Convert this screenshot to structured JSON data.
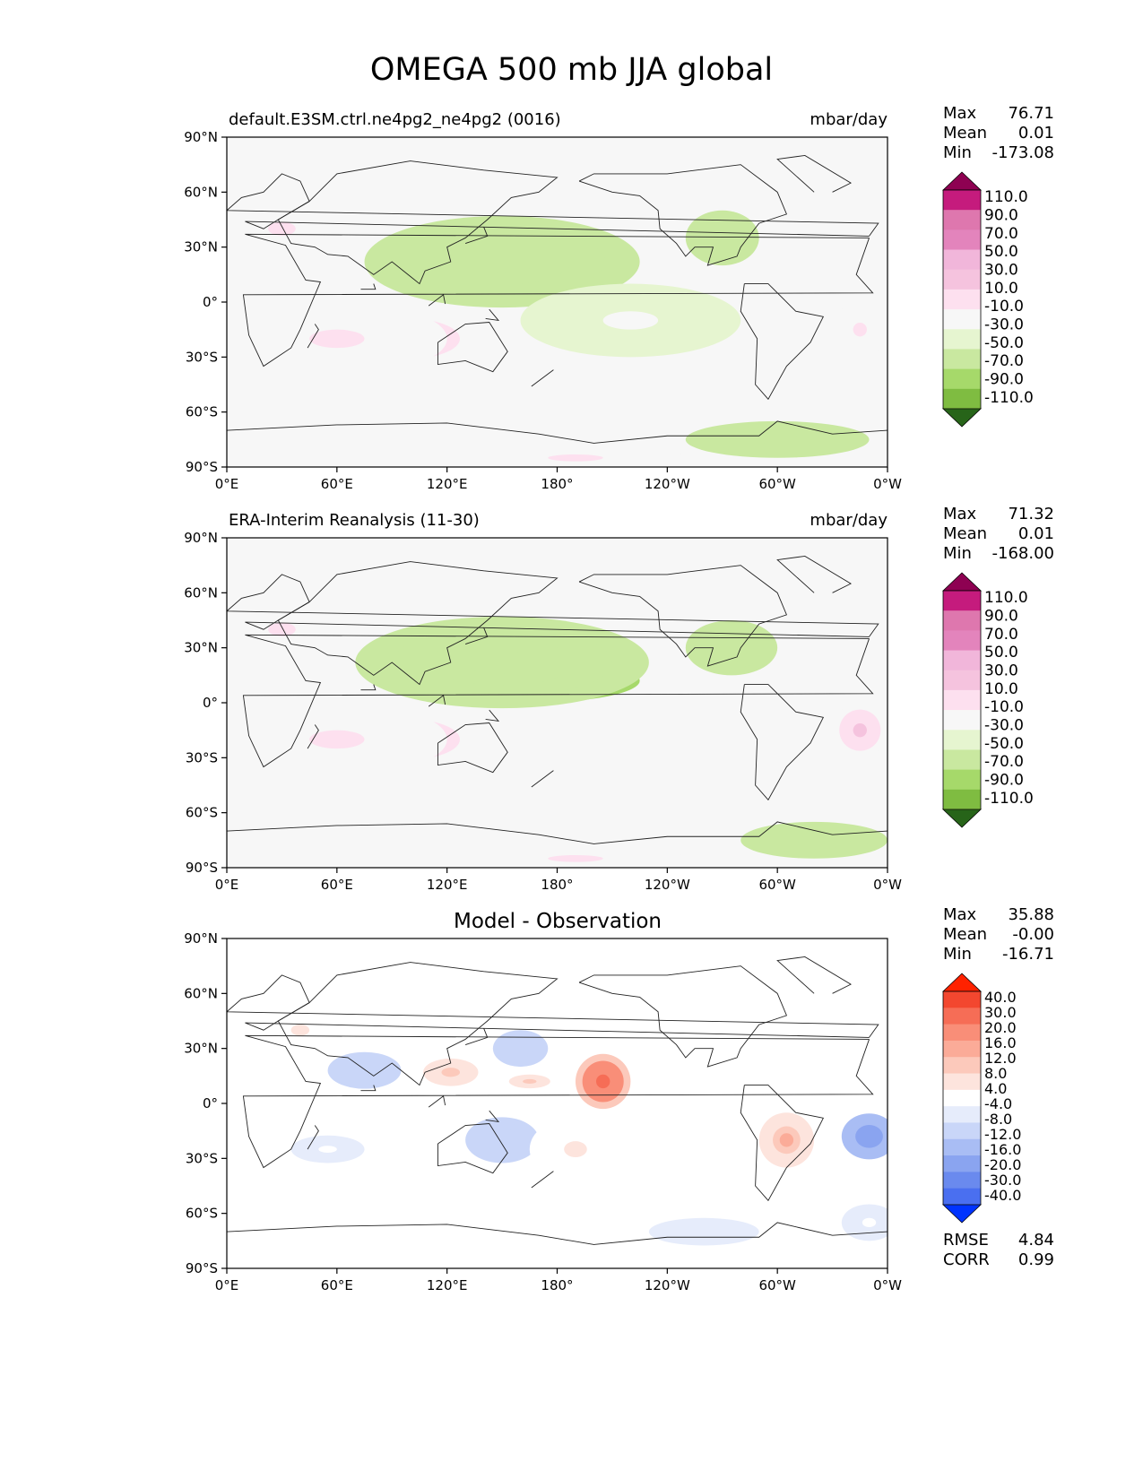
{
  "title": "OMEGA 500 mb JJA global",
  "axes": {
    "lat_ticks": [
      "90°N",
      "60°N",
      "30°N",
      "0°",
      "30°S",
      "60°S",
      "90°S"
    ],
    "lon_ticks": [
      "0°E",
      "60°E",
      "120°E",
      "180°",
      "120°W",
      "60°W",
      "0°W"
    ]
  },
  "colors": {
    "omega_levels_colors": [
      "#276419",
      "#3a7d1e",
      "#4d9221",
      "#7fbc41",
      "#a6d96a",
      "#c9e8a0",
      "#e6f5d0",
      "#f7f7f7",
      "#fde0ef",
      "#f5c3de",
      "#f1b6da",
      "#e384bc",
      "#de77ae",
      "#c51b7d",
      "#8e0152"
    ],
    "diff_levels_colors": [
      "#0033ff",
      "#2a55f5",
      "#4a6ff0",
      "#6a8aee",
      "#8aa4f0",
      "#a9bdf4",
      "#c9d6f8",
      "#e6ecfb",
      "#ffffff",
      "#fde4dd",
      "#fcc9bb",
      "#fbab98",
      "#f98e78",
      "#f66d56",
      "#f3472f",
      "#ff2200"
    ]
  },
  "chart_data": [
    {
      "type": "heatmap",
      "title": "default.E3SM.ctrl.ne4pg2_ne4pg2 (0016)",
      "units": "mbar/day",
      "xlim": [
        0,
        360
      ],
      "ylim": [
        -90,
        90
      ],
      "stats": {
        "labels": [
          "Max",
          "Mean",
          "Min"
        ],
        "values": [
          "76.71",
          "0.01",
          "-173.08"
        ]
      },
      "colorbar_ticks": [
        "110.0",
        "90.0",
        "70.0",
        "50.0",
        "30.0",
        "10.0",
        "-10.0",
        "-30.0",
        "-50.0",
        "-70.0",
        "-90.0",
        "-110.0"
      ],
      "features": [
        {
          "lon": 140,
          "lat": 14,
          "level": -110,
          "w": 90,
          "h": 16
        },
        {
          "lon": 160,
          "lat": 12,
          "level": -70,
          "w": 110,
          "h": 24
        },
        {
          "lon": 150,
          "lat": 22,
          "level": -30,
          "w": 150,
          "h": 50
        },
        {
          "lon": 97,
          "lat": -20,
          "level": 50,
          "w": 80,
          "h": 30
        },
        {
          "lon": 60,
          "lat": -20,
          "level": 30,
          "w": 120,
          "h": 40
        },
        {
          "lon": 220,
          "lat": -10,
          "level": 10,
          "w": 120,
          "h": 40
        },
        {
          "lon": 345,
          "lat": -15,
          "level": 30,
          "w": 30,
          "h": 30
        },
        {
          "lon": 30,
          "lat": 40,
          "level": 30,
          "w": 60,
          "h": 30
        },
        {
          "lon": 270,
          "lat": 35,
          "level": -30,
          "w": 40,
          "h": 30
        },
        {
          "lon": 300,
          "lat": -75,
          "level": -30,
          "w": 100,
          "h": 20
        },
        {
          "lon": 190,
          "lat": -85,
          "level": 30,
          "w": 120,
          "h": 15
        }
      ]
    },
    {
      "type": "heatmap",
      "title": "ERA-Interim Reanalysis (11-30)",
      "units": "mbar/day",
      "xlim": [
        0,
        360
      ],
      "ylim": [
        -90,
        90
      ],
      "stats": {
        "labels": [
          "Max",
          "Mean",
          "Min"
        ],
        "values": [
          "71.32",
          "0.01",
          "-168.00"
        ]
      },
      "colorbar_ticks": [
        "110.0",
        "90.0",
        "70.0",
        "50.0",
        "30.0",
        "10.0",
        "-10.0",
        "-30.0",
        "-50.0",
        "-70.0",
        "-90.0",
        "-110.0"
      ],
      "features": [
        {
          "lon": 140,
          "lat": 14,
          "level": -110,
          "w": 90,
          "h": 16
        },
        {
          "lon": 165,
          "lat": 12,
          "level": -70,
          "w": 120,
          "h": 24
        },
        {
          "lon": 150,
          "lat": 22,
          "level": -30,
          "w": 160,
          "h": 50
        },
        {
          "lon": 97,
          "lat": -20,
          "level": 50,
          "w": 80,
          "h": 30
        },
        {
          "lon": 60,
          "lat": -20,
          "level": 30,
          "w": 120,
          "h": 40
        },
        {
          "lon": 345,
          "lat": -15,
          "level": 50,
          "w": 30,
          "h": 30
        },
        {
          "lon": 30,
          "lat": 40,
          "level": 30,
          "w": 60,
          "h": 30
        },
        {
          "lon": 275,
          "lat": 30,
          "level": -30,
          "w": 50,
          "h": 30
        },
        {
          "lon": 320,
          "lat": -75,
          "level": -30,
          "w": 80,
          "h": 20
        },
        {
          "lon": 190,
          "lat": -85,
          "level": 30,
          "w": 120,
          "h": 15
        }
      ]
    },
    {
      "type": "heatmap",
      "title": "Model - Observation",
      "units": "",
      "xlim": [
        0,
        360
      ],
      "ylim": [
        -90,
        90
      ],
      "stats": {
        "labels": [
          "Max",
          "Mean",
          "Min"
        ],
        "values": [
          "35.88",
          "-0.00",
          "-16.71"
        ]
      },
      "colorbar_ticks": [
        "40.0",
        "30.0",
        "20.0",
        "16.0",
        "12.0",
        "8.0",
        "4.0",
        "-4.0",
        "-8.0",
        "-12.0",
        "-16.0",
        "-20.0",
        "-30.0",
        "-40.0"
      ],
      "metrics": {
        "labels": [
          "RMSE",
          "CORR"
        ],
        "values": [
          "4.84",
          "0.99"
        ]
      },
      "features": [
        {
          "lon": 205,
          "lat": 12,
          "level": 30,
          "w": 30,
          "h": 30
        },
        {
          "lon": 165,
          "lat": 12,
          "level": 12,
          "w": 30,
          "h": 10
        },
        {
          "lon": 122,
          "lat": 17,
          "level": 12,
          "w": 40,
          "h": 20
        },
        {
          "lon": 305,
          "lat": -20,
          "level": 16,
          "w": 30,
          "h": 30
        },
        {
          "lon": 350,
          "lat": -18,
          "level": -16,
          "w": 30,
          "h": 25
        },
        {
          "lon": 75,
          "lat": 18,
          "level": -8,
          "w": 40,
          "h": 20
        },
        {
          "lon": 150,
          "lat": -20,
          "level": -8,
          "w": 40,
          "h": 25
        },
        {
          "lon": 190,
          "lat": -25,
          "level": 8,
          "w": 50,
          "h": 35
        },
        {
          "lon": 40,
          "lat": 40,
          "level": 8,
          "w": 40,
          "h": 25
        },
        {
          "lon": 55,
          "lat": -25,
          "level": 4,
          "w": 40,
          "h": 15
        },
        {
          "lon": 160,
          "lat": 30,
          "level": -8,
          "w": 30,
          "h": 20
        },
        {
          "lon": 260,
          "lat": -70,
          "level": -4,
          "w": 60,
          "h": 15
        },
        {
          "lon": 350,
          "lat": -65,
          "level": 4,
          "w": 30,
          "h": 20
        }
      ]
    }
  ]
}
